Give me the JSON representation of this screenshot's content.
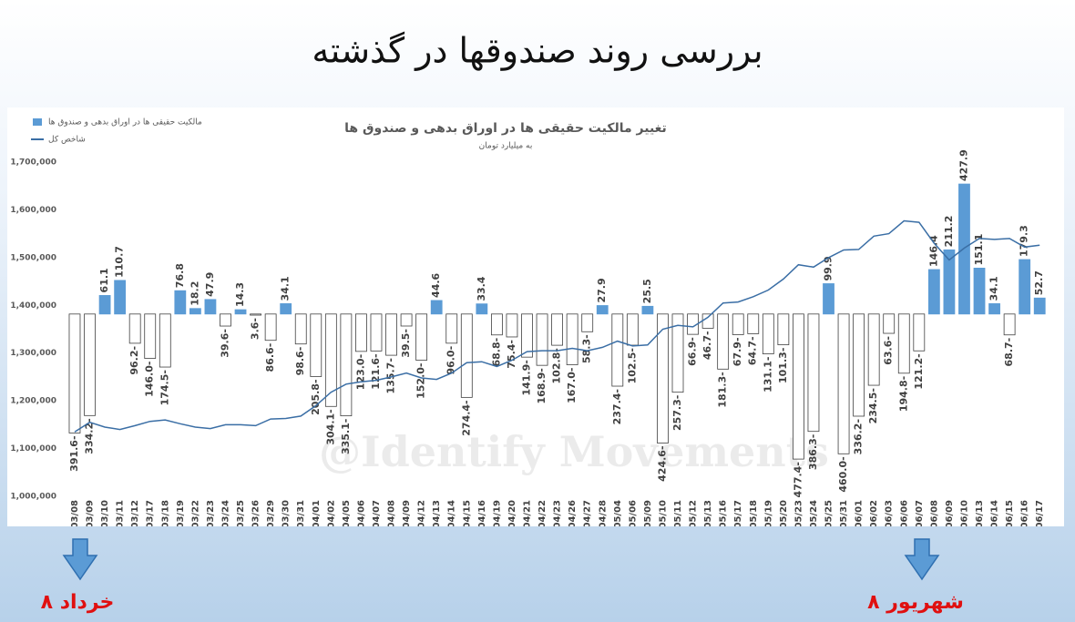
{
  "page_title": "بررسی روند صندوقها در گذشته",
  "markers": [
    {
      "label": "۸ خرداد"
    },
    {
      "label": "۸ شهریور"
    }
  ],
  "chart_data": {
    "type": "combo",
    "title": "تغییر مالکیت حقیقی ها در اوراق بدهی و صندوق  ها",
    "subtitle": "به میلیارد تومان",
    "watermark": "@Identify  Movements",
    "legend": "top-left",
    "categories": [
      "03/08",
      "03/09",
      "03/10",
      "03/11",
      "03/12",
      "03/17",
      "03/18",
      "03/19",
      "03/22",
      "03/23",
      "03/24",
      "03/25",
      "03/26",
      "03/29",
      "03/30",
      "03/31",
      "04/01",
      "04/02",
      "04/05",
      "04/06",
      "04/07",
      "04/08",
      "04/09",
      "04/12",
      "04/13",
      "04/14",
      "04/15",
      "04/16",
      "04/19",
      "04/20",
      "04/21",
      "04/22",
      "04/23",
      "04/26",
      "04/27",
      "04/28",
      "05/04",
      "05/06",
      "05/09",
      "05/10",
      "05/11",
      "05/12",
      "05/13",
      "05/16",
      "05/17",
      "05/18",
      "05/19",
      "05/20",
      "05/23",
      "05/24",
      "05/25",
      "05/31",
      "06/01",
      "06/02",
      "06/03",
      "06/06",
      "06/07",
      "06/08",
      "06/09",
      "06/10",
      "06/13",
      "06/14",
      "06/15",
      "06/16",
      "06/17"
    ],
    "ylim": [
      1000000,
      1700000
    ],
    "yticks": [
      {
        "value": 1000000,
        "label": "1,000,000"
      },
      {
        "value": 1100000,
        "label": "1,100,000"
      },
      {
        "value": 1200000,
        "label": "1,200,000"
      },
      {
        "value": 1300000,
        "label": "1,300,000"
      },
      {
        "value": 1400000,
        "label": "1,400,000"
      },
      {
        "value": 1500000,
        "label": "1,500,000"
      },
      {
        "value": 1600000,
        "label": "1,600,000"
      },
      {
        "value": 1700000,
        "label": "1,700,000"
      }
    ],
    "y2lim": [
      -600,
      500
    ],
    "series": [
      {
        "name": "مالکیت حقیقی ها در اوراق بدهی و صندوق ها",
        "type": "bar",
        "axis": "y2",
        "color": "#5b9bd5",
        "negative_color": "#ffffff",
        "values": [
          -391.6,
          -334.2,
          61.1,
          110.7,
          -96.2,
          -146.0,
          -174.5,
          76.8,
          18.2,
          47.9,
          -39.6,
          14.3,
          -3.6,
          -86.6,
          34.1,
          -98.6,
          -205.8,
          -304.1,
          -335.1,
          -123.0,
          -121.6,
          -135.7,
          -39.5,
          -152.0,
          44.6,
          -96.0,
          -274.4,
          33.4,
          -68.8,
          -75.4,
          -141.9,
          -168.9,
          -102.8,
          -167.0,
          -58.3,
          27.9,
          -237.4,
          -102.5,
          25.5,
          -424.6,
          -257.3,
          -66.9,
          -46.7,
          -181.3,
          -67.9,
          -64.7,
          -131.1,
          -101.3,
          -477.4,
          -386.3,
          99.9,
          -460.0,
          -336.2,
          -234.5,
          -63.6,
          -194.8,
          -121.2,
          146.4,
          211.2,
          427.9,
          151.1,
          34.1,
          -68.7,
          179.3,
          52.7
        ],
        "value_labels": [
          "391.6-",
          "334.2-",
          "61.1",
          "110.7",
          "96.2-",
          "146.0-",
          "174.5-",
          "76.8",
          "18.2",
          "47.9",
          "39.6-",
          "14.3",
          "3.6-",
          "86.6-",
          "34.1",
          "98.6-",
          "205.8-",
          "304.1-",
          "335.1-",
          "123.0-",
          "121.6-",
          "135.7-",
          "39.5-",
          "152.0-",
          "44.6",
          "96.0-",
          "274.4-",
          "33.4",
          "68.8-",
          "75.4-",
          "141.9-",
          "168.9-",
          "102.8-",
          "167.0-",
          "58.3-",
          "27.9",
          "237.4-",
          "102.5-",
          "25.5",
          "424.6-",
          "257.3-",
          "66.9-",
          "46.7-",
          "181.3-",
          "67.9-",
          "64.7-",
          "131.1-",
          "101.3-",
          "477.4-",
          "386.3-",
          "99.9",
          "460.0-",
          "336.2-",
          "234.5-",
          "63.6-",
          "194.8-",
          "121.2-",
          "146.4",
          "211.2",
          "427.9",
          "151.1",
          "34.1",
          "68.7-",
          "179.3",
          "52.7"
        ]
      },
      {
        "name": "شاخص کل",
        "type": "line",
        "color": "#3a6ea5",
        "values": [
          1135000,
          1155000,
          1145000,
          1140000,
          1148000,
          1157000,
          1160000,
          1152000,
          1145000,
          1142000,
          1150000,
          1150000,
          1148000,
          1162000,
          1163000,
          1168000,
          1190000,
          1218000,
          1235000,
          1240000,
          1243000,
          1250000,
          1258000,
          1248000,
          1245000,
          1258000,
          1280000,
          1282000,
          1272000,
          1285000,
          1303000,
          1305000,
          1305000,
          1310000,
          1305000,
          1312000,
          1325000,
          1315000,
          1317000,
          1350000,
          1358000,
          1355000,
          1375000,
          1405000,
          1407000,
          1418000,
          1432000,
          1455000,
          1485000,
          1480000,
          1500000,
          1516000,
          1517000,
          1545000,
          1550000,
          1577000,
          1574000,
          1530000,
          1495000,
          1520000,
          1540000,
          1538000,
          1540000,
          1522000,
          1526000
        ]
      }
    ]
  }
}
